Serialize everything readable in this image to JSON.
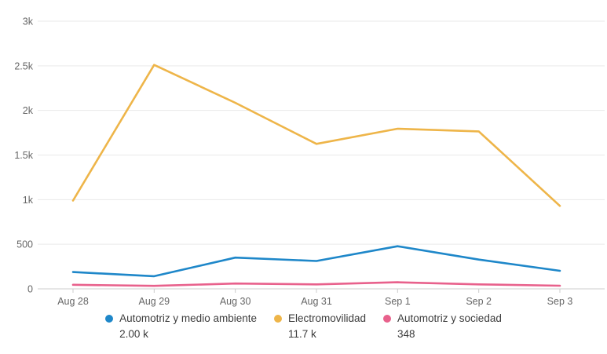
{
  "chart_data": {
    "type": "line",
    "title": "",
    "xlabel": "",
    "ylabel": "",
    "categories": [
      "Aug 28",
      "Aug 29",
      "Aug 30",
      "Aug 31",
      "Sep 1",
      "Sep 2",
      "Sep 3"
    ],
    "series": [
      {
        "name": "Automotriz y medio ambiente",
        "total_label": "2.00 k",
        "color": "#1e87c9",
        "values": [
          188,
          142,
          350,
          312,
          478,
          328,
          202
        ]
      },
      {
        "name": "Electromovilidad",
        "total_label": "11.7 k",
        "color": "#eeb549",
        "values": [
          990,
          2510,
          2085,
          1625,
          1795,
          1765,
          930
        ]
      },
      {
        "name": "Automotriz y sociedad",
        "total_label": "348",
        "color": "#e8618c",
        "values": [
          46,
          33,
          60,
          50,
          74,
          50,
          35
        ]
      }
    ],
    "ylim": [
      0,
      3000
    ],
    "yticks": {
      "values": [
        0,
        500,
        1000,
        1500,
        2000,
        2500,
        3000
      ],
      "labels": [
        "0",
        "500",
        "1k",
        "1.5k",
        "2k",
        "2.5k",
        "3k"
      ]
    },
    "grid": true,
    "legend_position": "bottom",
    "colors": {
      "gridline": "#e9e9e9",
      "axis_line": "#cccccc",
      "tick_label": "#666666",
      "legend_text": "#3c3c3c",
      "background": "#ffffff"
    }
  }
}
